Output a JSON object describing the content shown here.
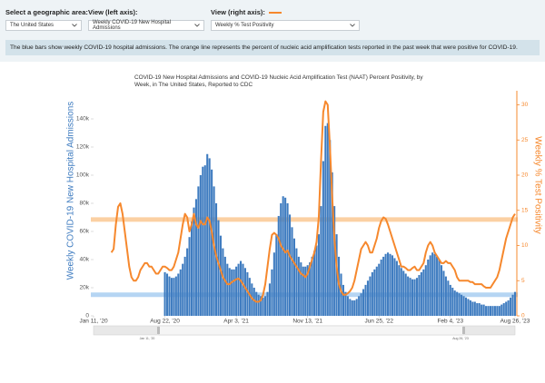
{
  "controls": [
    {
      "label": "Select a geographic area:",
      "value": "The United States"
    },
    {
      "label": "View (left axis):",
      "value": "Weekly COVID-19 New Hospital Admissions"
    },
    {
      "label": "View (right axis):",
      "value": "Weekly % Test Positivity"
    }
  ],
  "info": "The blue bars show weekly COVID-19 hospital admissions. The orange line represents the percent of nucleic acid amplification tests reported in the past week that were positive for COVID-19.",
  "chart_data": {
    "type": "bar-line",
    "title": "COVID-19 New Hospital Admissions and COVID-19 Nucleic Acid Amplification Test (NAAT) Percent Positivity, by Week, in The United States, Reported to CDC",
    "y_label": "Weekly COVID-19 New Hospital Admissions",
    "y2_label": "Weekly % Test Positivity",
    "xlim": [
      "2020-01-11",
      "2023-08-26"
    ],
    "xticks": [
      {
        "value": "2020-01-11",
        "label": "Jan 11, '20"
      },
      {
        "value": "2020-08-22",
        "label": "Aug 22, '20"
      },
      {
        "value": "2021-04-03",
        "label": "Apr 3, '21"
      },
      {
        "value": "2021-11-13",
        "label": "Nov 13, '21"
      },
      {
        "value": "2022-06-25",
        "label": "Jun 25, '22"
      },
      {
        "value": "2023-02-04",
        "label": "Feb 4, '23"
      },
      {
        "value": "2023-08-26",
        "label": "Aug 26, '23"
      }
    ],
    "ylim": [
      0,
      160000
    ],
    "yticks": [
      0,
      {
        "value": 20000,
        "label": "20k"
      },
      {
        "value": 40000,
        "label": "40k"
      },
      {
        "value": 60000,
        "label": "60k"
      },
      {
        "value": 80000,
        "label": "80k"
      },
      {
        "value": 100000,
        "label": "100k"
      },
      {
        "value": 120000,
        "label": "120k"
      },
      {
        "value": 140000,
        "label": "140k"
      }
    ],
    "y2lim": [
      0,
      32
    ],
    "y2ticks": [
      0,
      5,
      10,
      15,
      20,
      25,
      30
    ],
    "bands": [
      {
        "axis": "y",
        "value": 15000,
        "color": "#b5d5f3"
      },
      {
        "axis": "y2",
        "value": 13.7,
        "color": "#fbd0a3"
      }
    ],
    "x": [
      "2020-03-07",
      "2020-03-14",
      "2020-03-21",
      "2020-03-28",
      "2020-04-04",
      "2020-04-11",
      "2020-04-18",
      "2020-04-25",
      "2020-05-02",
      "2020-05-09",
      "2020-05-16",
      "2020-05-23",
      "2020-05-30",
      "2020-06-06",
      "2020-06-13",
      "2020-06-20",
      "2020-06-27",
      "2020-07-04",
      "2020-07-11",
      "2020-07-18",
      "2020-07-25",
      "2020-08-01",
      "2020-08-08",
      "2020-08-15",
      "2020-08-22",
      "2020-08-29",
      "2020-09-05",
      "2020-09-12",
      "2020-09-19",
      "2020-09-26",
      "2020-10-03",
      "2020-10-10",
      "2020-10-17",
      "2020-10-24",
      "2020-10-31",
      "2020-11-07",
      "2020-11-14",
      "2020-11-21",
      "2020-11-28",
      "2020-12-05",
      "2020-12-12",
      "2020-12-19",
      "2020-12-26",
      "2021-01-02",
      "2021-01-09",
      "2021-01-16",
      "2021-01-23",
      "2021-01-30",
      "2021-02-06",
      "2021-02-13",
      "2021-02-20",
      "2021-02-27",
      "2021-03-06",
      "2021-03-13",
      "2021-03-20",
      "2021-03-27",
      "2021-04-03",
      "2021-04-10",
      "2021-04-17",
      "2021-04-24",
      "2021-05-01",
      "2021-05-08",
      "2021-05-15",
      "2021-05-22",
      "2021-05-29",
      "2021-06-05",
      "2021-06-12",
      "2021-06-19",
      "2021-06-26",
      "2021-07-03",
      "2021-07-10",
      "2021-07-17",
      "2021-07-24",
      "2021-07-31",
      "2021-08-07",
      "2021-08-14",
      "2021-08-21",
      "2021-08-28",
      "2021-09-04",
      "2021-09-11",
      "2021-09-18",
      "2021-09-25",
      "2021-10-02",
      "2021-10-09",
      "2021-10-16",
      "2021-10-23",
      "2021-10-30",
      "2021-11-06",
      "2021-11-13",
      "2021-11-20",
      "2021-11-27",
      "2021-12-04",
      "2021-12-11",
      "2021-12-18",
      "2021-12-25",
      "2022-01-01",
      "2022-01-08",
      "2022-01-15",
      "2022-01-22",
      "2022-01-29",
      "2022-02-05",
      "2022-02-12",
      "2022-02-19",
      "2022-02-26",
      "2022-03-05",
      "2022-03-12",
      "2022-03-19",
      "2022-03-26",
      "2022-04-02",
      "2022-04-09",
      "2022-04-16",
      "2022-04-23",
      "2022-04-30",
      "2022-05-07",
      "2022-05-14",
      "2022-05-21",
      "2022-05-28",
      "2022-06-04",
      "2022-06-11",
      "2022-06-18",
      "2022-06-25",
      "2022-07-02",
      "2022-07-09",
      "2022-07-16",
      "2022-07-23",
      "2022-07-30",
      "2022-08-06",
      "2022-08-13",
      "2022-08-20",
      "2022-08-27",
      "2022-09-03",
      "2022-09-10",
      "2022-09-17",
      "2022-09-24",
      "2022-10-01",
      "2022-10-08",
      "2022-10-15",
      "2022-10-22",
      "2022-10-29",
      "2022-11-05",
      "2022-11-12",
      "2022-11-19",
      "2022-11-26",
      "2022-12-03",
      "2022-12-10",
      "2022-12-17",
      "2022-12-24",
      "2022-12-31",
      "2023-01-07",
      "2023-01-14",
      "2023-01-21",
      "2023-01-28",
      "2023-02-04",
      "2023-02-11",
      "2023-02-18",
      "2023-02-25",
      "2023-03-04",
      "2023-03-11",
      "2023-03-18",
      "2023-03-25",
      "2023-04-01",
      "2023-04-08",
      "2023-04-15",
      "2023-04-22",
      "2023-04-29",
      "2023-05-06",
      "2023-05-13",
      "2023-05-20",
      "2023-05-27",
      "2023-06-03",
      "2023-06-10",
      "2023-06-17",
      "2023-06-24",
      "2023-07-01",
      "2023-07-08",
      "2023-07-15",
      "2023-07-22",
      "2023-07-29",
      "2023-08-05",
      "2023-08-12",
      "2023-08-19",
      "2023-08-26"
    ],
    "series": [
      {
        "name": "Weekly COVID-19 New Hospital Admissions",
        "type": "bar",
        "color": "#3f7cc0",
        "axis": "y",
        "values": [
          null,
          null,
          null,
          null,
          null,
          null,
          null,
          null,
          null,
          null,
          null,
          null,
          null,
          null,
          null,
          null,
          null,
          null,
          null,
          null,
          null,
          null,
          null,
          null,
          31000,
          30000,
          28000,
          27000,
          27000,
          28000,
          30000,
          33000,
          37000,
          42000,
          48000,
          56000,
          67000,
          77000,
          83000,
          92000,
          100000,
          106000,
          107000,
          115000,
          112000,
          104000,
          92000,
          80000,
          68000,
          57000,
          48000,
          42000,
          37000,
          34000,
          33000,
          33000,
          35000,
          37000,
          39000,
          37000,
          34000,
          31000,
          27000,
          23000,
          20000,
          17000,
          15000,
          14000,
          13000,
          14000,
          17000,
          23000,
          33000,
          45000,
          58000,
          71000,
          80000,
          85000,
          84000,
          80000,
          72000,
          63000,
          55000,
          48000,
          42000,
          38000,
          35000,
          35000,
          36000,
          38000,
          42000,
          46000,
          50000,
          58000,
          78000,
          110000,
          135000,
          137000,
          125000,
          102000,
          78000,
          58000,
          42000,
          30000,
          22000,
          17000,
          14000,
          12000,
          11000,
          11000,
          12000,
          14000,
          16000,
          19000,
          22000,
          25000,
          28000,
          31000,
          33000,
          35000,
          37000,
          40000,
          42000,
          44000,
          45000,
          44000,
          43000,
          41000,
          39000,
          36000,
          34000,
          32000,
          30000,
          28000,
          27000,
          26000,
          26000,
          27000,
          29000,
          31000,
          33000,
          36000,
          40000,
          43000,
          45000,
          44000,
          42000,
          40000,
          36000,
          32000,
          28000,
          25000,
          22000,
          20000,
          18000,
          17000,
          16000,
          15000,
          14000,
          13000,
          12000,
          11000,
          10000,
          10000,
          9000,
          9000,
          8000,
          8000,
          7000,
          7000,
          7000,
          7000,
          7000,
          7000,
          7000,
          8000,
          9000,
          10000,
          11000,
          13000,
          15000,
          17000
        ]
      },
      {
        "name": "Weekly % Test Positivity",
        "type": "line",
        "color": "#f6882d",
        "axis": "y2",
        "values": [
          9,
          9.5,
          13,
          15.5,
          16,
          14.5,
          12,
          9.5,
          7,
          5.5,
          5,
          5,
          5.5,
          6.5,
          7,
          7.5,
          7.5,
          7,
          7,
          6.5,
          6,
          6,
          6.5,
          7,
          7,
          6.8,
          6.5,
          6.5,
          7,
          8,
          9,
          11,
          13,
          14.5,
          14,
          12,
          13,
          14.5,
          13,
          12.5,
          13.5,
          13,
          13,
          14,
          13.5,
          12,
          10,
          8.5,
          7.5,
          6.5,
          5.5,
          5,
          4.5,
          4.5,
          4.8,
          5,
          5.2,
          5.3,
          5,
          4.5,
          4,
          3.5,
          3,
          2.5,
          2.2,
          2,
          2,
          2.2,
          3,
          4.5,
          7,
          9.5,
          11.5,
          11.8,
          11.5,
          11,
          10,
          9.5,
          9,
          9.3,
          8.5,
          8,
          7.5,
          7,
          6.5,
          6,
          5.8,
          5.5,
          6,
          7,
          8,
          9,
          10.5,
          14,
          22,
          29,
          30.5,
          30,
          24,
          17,
          11,
          7,
          4.5,
          3.5,
          3,
          3,
          3.2,
          3.5,
          4,
          5,
          6.5,
          8,
          9.5,
          10,
          10.5,
          10,
          9,
          9,
          10,
          11,
          12.5,
          13.5,
          14,
          13.8,
          13,
          12,
          11,
          10,
          9,
          8,
          7,
          7,
          6.8,
          6.5,
          6.5,
          6.8,
          7,
          6.5,
          6.5,
          7,
          7.5,
          9,
          10,
          10.5,
          10,
          9,
          8.5,
          8,
          7.5,
          7.5,
          7.8,
          7.5,
          7.5,
          7,
          6.5,
          5.5,
          5,
          5,
          5,
          5,
          5,
          4.8,
          4.8,
          4.5,
          4.5,
          4.5,
          4.5,
          4.2,
          4,
          4,
          4,
          4.5,
          5,
          5.5,
          6.5,
          8,
          9.5,
          11,
          12,
          13,
          14,
          14.5
        ]
      }
    ]
  }
}
